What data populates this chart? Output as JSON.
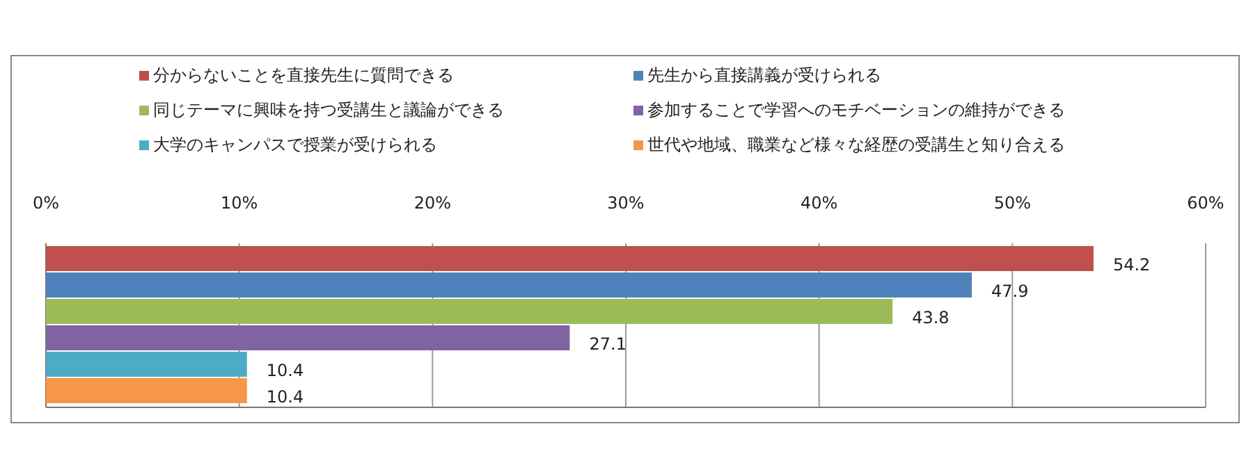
{
  "chart_data": {
    "type": "bar",
    "orientation": "horizontal",
    "categories": [
      null
    ],
    "series": [
      {
        "name": "分からないことを直接先生に質問できる",
        "color": "#c0504d",
        "values": [
          54.2
        ]
      },
      {
        "name": "先生から直接講義が受けられる",
        "color": "#4f81bd",
        "values": [
          47.9
        ]
      },
      {
        "name": "同じテーマに興味を持つ受講生と議論ができる",
        "color": "#9bbb59",
        "values": [
          43.8
        ]
      },
      {
        "name": "参加することで学習へのモチベーションの維持ができる",
        "color": "#8064a2",
        "values": [
          27.1
        ]
      },
      {
        "name": "大学のキャンパスで授業が受けられる",
        "color": "#4bacc6",
        "values": [
          10.4
        ]
      },
      {
        "name": "世代や地域、職業など様々な経歴の受講生と知り合える",
        "color": "#f79646",
        "values": [
          10.4
        ]
      }
    ],
    "xlim": [
      0,
      60
    ],
    "xticks": [
      {
        "value": 0,
        "label": "0%"
      },
      {
        "value": 10,
        "label": "10%"
      },
      {
        "value": 20,
        "label": "20%"
      },
      {
        "value": 30,
        "label": "30%"
      },
      {
        "value": 40,
        "label": "40%"
      },
      {
        "value": 50,
        "label": "50%"
      },
      {
        "value": 60,
        "label": "60%"
      }
    ],
    "grid": "x",
    "legend": "top",
    "data_labels": true
  }
}
